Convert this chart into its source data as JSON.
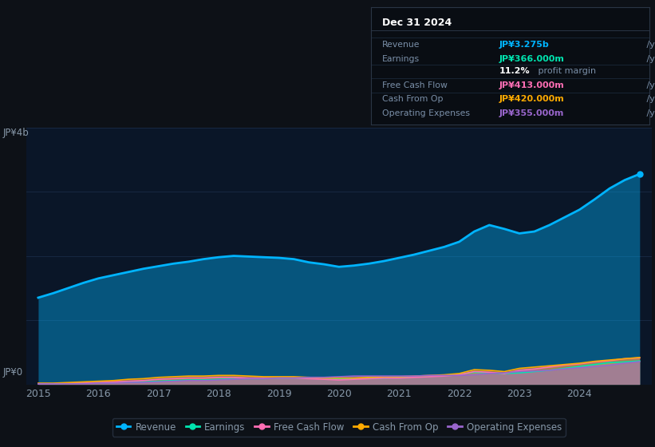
{
  "bg_color": "#0d1117",
  "plot_bg_color": "#0a1628",
  "grid_color": "#1a2d4a",
  "text_color": "#8899aa",
  "years": [
    2015.0,
    2015.25,
    2015.5,
    2015.75,
    2016.0,
    2016.25,
    2016.5,
    2016.75,
    2017.0,
    2017.25,
    2017.5,
    2017.75,
    2018.0,
    2018.25,
    2018.5,
    2018.75,
    2019.0,
    2019.25,
    2019.5,
    2019.75,
    2020.0,
    2020.25,
    2020.5,
    2020.75,
    2021.0,
    2021.25,
    2021.5,
    2021.75,
    2022.0,
    2022.25,
    2022.5,
    2022.75,
    2023.0,
    2023.25,
    2023.5,
    2023.75,
    2024.0,
    2024.25,
    2024.5,
    2024.75,
    2025.0
  ],
  "revenue": [
    1.35,
    1.42,
    1.5,
    1.58,
    1.65,
    1.7,
    1.75,
    1.8,
    1.84,
    1.88,
    1.91,
    1.95,
    1.98,
    2.0,
    1.99,
    1.98,
    1.97,
    1.95,
    1.9,
    1.87,
    1.83,
    1.85,
    1.88,
    1.92,
    1.97,
    2.02,
    2.08,
    2.14,
    2.22,
    2.38,
    2.48,
    2.42,
    2.35,
    2.38,
    2.48,
    2.6,
    2.72,
    2.88,
    3.05,
    3.18,
    3.275
  ],
  "earnings": [
    0.01,
    0.01,
    0.02,
    0.02,
    0.03,
    0.03,
    0.04,
    0.04,
    0.05,
    0.06,
    0.07,
    0.07,
    0.08,
    0.09,
    0.09,
    0.09,
    0.1,
    0.1,
    0.1,
    0.1,
    0.09,
    0.09,
    0.1,
    0.1,
    0.11,
    0.12,
    0.13,
    0.14,
    0.16,
    0.19,
    0.18,
    0.17,
    0.18,
    0.2,
    0.22,
    0.25,
    0.28,
    0.31,
    0.34,
    0.35,
    0.366
  ],
  "free_cash_flow": [
    0.01,
    0.01,
    0.02,
    0.02,
    0.03,
    0.04,
    0.05,
    0.06,
    0.08,
    0.09,
    0.1,
    0.1,
    0.11,
    0.11,
    0.1,
    0.1,
    0.1,
    0.1,
    0.09,
    0.08,
    0.07,
    0.08,
    0.09,
    0.1,
    0.1,
    0.11,
    0.12,
    0.13,
    0.15,
    0.2,
    0.19,
    0.17,
    0.22,
    0.24,
    0.27,
    0.3,
    0.32,
    0.35,
    0.37,
    0.4,
    0.413
  ],
  "cash_from_op": [
    0.02,
    0.02,
    0.03,
    0.04,
    0.05,
    0.06,
    0.08,
    0.09,
    0.11,
    0.12,
    0.13,
    0.13,
    0.14,
    0.14,
    0.13,
    0.12,
    0.12,
    0.12,
    0.11,
    0.1,
    0.1,
    0.1,
    0.11,
    0.12,
    0.12,
    0.13,
    0.14,
    0.15,
    0.17,
    0.23,
    0.22,
    0.2,
    0.25,
    0.27,
    0.29,
    0.31,
    0.33,
    0.36,
    0.38,
    0.4,
    0.42
  ],
  "op_expenses": [
    0.01,
    0.01,
    0.01,
    0.01,
    0.02,
    0.02,
    0.03,
    0.03,
    0.04,
    0.05,
    0.06,
    0.06,
    0.07,
    0.08,
    0.09,
    0.09,
    0.1,
    0.1,
    0.11,
    0.11,
    0.12,
    0.13,
    0.13,
    0.13,
    0.13,
    0.13,
    0.14,
    0.14,
    0.14,
    0.15,
    0.17,
    0.18,
    0.2,
    0.21,
    0.22,
    0.24,
    0.26,
    0.28,
    0.3,
    0.33,
    0.355
  ],
  "revenue_color": "#00b4ff",
  "earnings_color": "#00e5b0",
  "fcf_color": "#ff6eb4",
  "cashop_color": "#ffaa00",
  "opex_color": "#9966cc",
  "ylim": [
    0,
    4.0
  ],
  "xlabel_years": [
    2015,
    2016,
    2017,
    2018,
    2019,
    2020,
    2021,
    2022,
    2023,
    2024
  ],
  "y4b_label": "JP¥4b",
  "y0_label": "JP¥0",
  "tooltip_title": "Dec 31 2024",
  "tooltip_rows": [
    {
      "label": "Revenue",
      "value": "JP¥3.275b",
      "suffix": " /yr",
      "color": "#00b4ff",
      "has_divider": true
    },
    {
      "label": "Earnings",
      "value": "JP¥366.000m",
      "suffix": " /yr",
      "color": "#00e5b0",
      "has_divider": false
    },
    {
      "label": "",
      "value": "11.2%",
      "suffix": " profit margin",
      "color": "#ffffff",
      "has_divider": true
    },
    {
      "label": "Free Cash Flow",
      "value": "JP¥413.000m",
      "suffix": " /yr",
      "color": "#ff6eb4",
      "has_divider": true
    },
    {
      "label": "Cash From Op",
      "value": "JP¥420.000m",
      "suffix": " /yr",
      "color": "#ffaa00",
      "has_divider": true
    },
    {
      "label": "Operating Expenses",
      "value": "JP¥355.000m",
      "suffix": " /yr",
      "color": "#9966cc",
      "has_divider": false
    }
  ],
  "legend": [
    {
      "label": "Revenue",
      "color": "#00b4ff"
    },
    {
      "label": "Earnings",
      "color": "#00e5b0"
    },
    {
      "label": "Free Cash Flow",
      "color": "#ff6eb4"
    },
    {
      "label": "Cash From Op",
      "color": "#ffaa00"
    },
    {
      "label": "Operating Expenses",
      "color": "#9966cc"
    }
  ]
}
